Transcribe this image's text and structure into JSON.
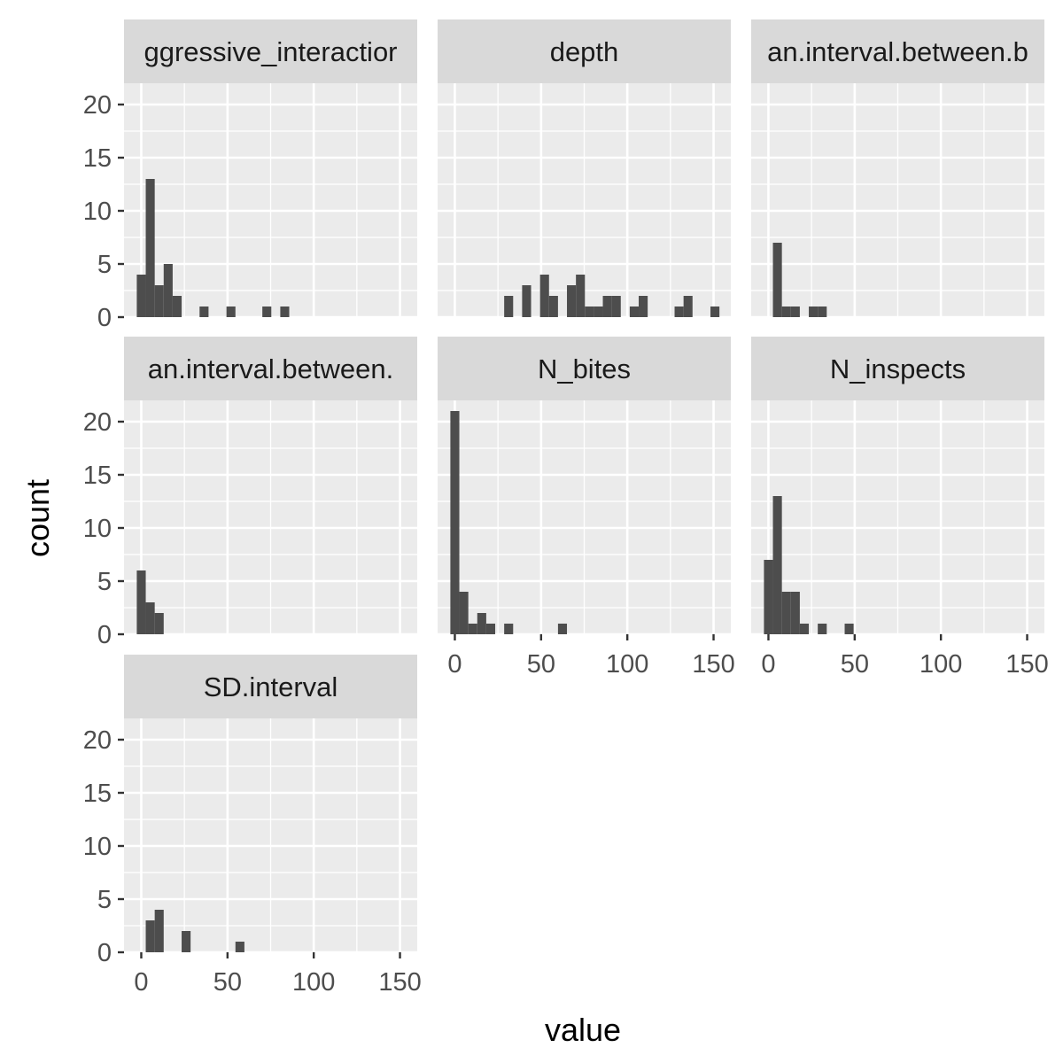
{
  "chart_data": {
    "type": "bar",
    "subtype": "faceted-histogram",
    "xlabel": "value",
    "ylabel": "count",
    "xlim": [
      -10,
      160
    ],
    "ylim": [
      0,
      22
    ],
    "x_ticks": [
      0,
      50,
      100,
      150
    ],
    "y_ticks": [
      0,
      5,
      10,
      15,
      20
    ],
    "grid": true,
    "legend": "none",
    "bin_width": 5.2,
    "colors": {
      "panel_bg": "#EBEBEB",
      "strip_bg": "#D9D9D9",
      "grid": "#FFFFFF",
      "bar": "#4D4D4D",
      "tick": "#333333",
      "tick_label": "#4D4D4D",
      "title": "#000000"
    },
    "facets": [
      {
        "name": "aggressive_interactions",
        "label": "ggressive_interactior",
        "bins": [
          [
            -2.6,
            4
          ],
          [
            2.6,
            13
          ],
          [
            7.8,
            3
          ],
          [
            13,
            5
          ],
          [
            18.2,
            2
          ],
          [
            33.8,
            1
          ],
          [
            49.4,
            1
          ],
          [
            70.2,
            1
          ],
          [
            80.6,
            1
          ]
        ]
      },
      {
        "name": "depth",
        "label": "depth",
        "bins": [
          [
            28.6,
            2
          ],
          [
            39,
            3
          ],
          [
            49.4,
            4
          ],
          [
            54.6,
            2
          ],
          [
            65,
            3
          ],
          [
            70.2,
            4
          ],
          [
            75.4,
            1
          ],
          [
            80.6,
            1
          ],
          [
            85.8,
            2
          ],
          [
            91,
            2
          ],
          [
            101.4,
            1
          ],
          [
            106.6,
            2
          ],
          [
            127.4,
            1
          ],
          [
            132.6,
            2
          ],
          [
            148.2,
            1
          ]
        ]
      },
      {
        "name": "mean.interval.between.bites",
        "label": "an.interval.between.b",
        "bins": [
          [
            2.6,
            7
          ],
          [
            7.8,
            1
          ],
          [
            13,
            1
          ],
          [
            28.6,
            1
          ],
          [
            23.4,
            1
          ]
        ]
      },
      {
        "name": "mean.interval.between.inspects",
        "label": "an.interval.between.",
        "bins": [
          [
            -2.6,
            6
          ],
          [
            2.6,
            3
          ],
          [
            7.8,
            2
          ]
        ]
      },
      {
        "name": "N_bites",
        "label": "N_bites",
        "bins": [
          [
            -2.6,
            21
          ],
          [
            2.6,
            4
          ],
          [
            7.8,
            1
          ],
          [
            13,
            2
          ],
          [
            18.2,
            1
          ],
          [
            28.6,
            1
          ],
          [
            59.8,
            1
          ]
        ]
      },
      {
        "name": "N_inspects",
        "label": "N_inspects",
        "bins": [
          [
            -2.6,
            7
          ],
          [
            2.6,
            13
          ],
          [
            7.8,
            4
          ],
          [
            13,
            4
          ],
          [
            18.2,
            1
          ],
          [
            28.6,
            1
          ],
          [
            44.2,
            1
          ]
        ]
      },
      {
        "name": "SD.interval",
        "label": "SD.interval",
        "bins": [
          [
            2.6,
            3
          ],
          [
            7.8,
            4
          ],
          [
            23.4,
            2
          ],
          [
            54.6,
            1
          ]
        ]
      }
    ]
  }
}
